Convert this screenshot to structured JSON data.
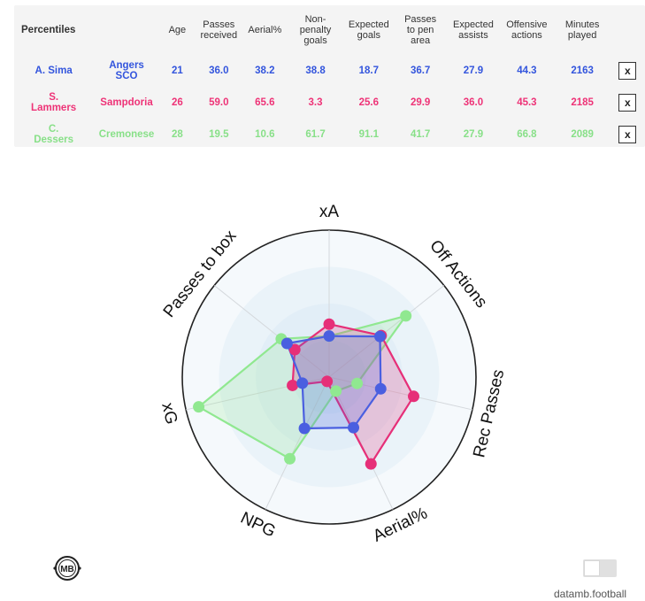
{
  "table": {
    "headers": [
      "Percentiles",
      "",
      "Age",
      "Passes received",
      "Aerial%",
      "Non-penalty goals",
      "Expected goals",
      "Passes to pen area",
      "Expected assists",
      "Offensive actions",
      "Minutes played"
    ],
    "header_lines": [
      [
        "Percentiles"
      ],
      [
        ""
      ],
      [
        "Age"
      ],
      [
        "Passes",
        "received"
      ],
      [
        "Aerial%"
      ],
      [
        "Non-",
        "penalty",
        "goals"
      ],
      [
        "Expected",
        "goals"
      ],
      [
        "Passes",
        "to pen",
        "area"
      ],
      [
        "Expected",
        "assists"
      ],
      [
        "Offensive",
        "actions"
      ],
      [
        "Minutes",
        "played"
      ]
    ],
    "remove_label": "x",
    "rows": [
      {
        "player": "A. Sima",
        "player_lines": [
          "A. Sima"
        ],
        "team": "Angers SCO",
        "team_lines": [
          "Angers",
          "SCO"
        ],
        "values": [
          "21",
          "36.0",
          "38.2",
          "38.8",
          "18.7",
          "36.7",
          "27.9",
          "44.3",
          "2163"
        ],
        "color": "#3355dd"
      },
      {
        "player": "S. Lammers",
        "player_lines": [
          "S.",
          "Lammers"
        ],
        "team": "Sampdoria",
        "team_lines": [
          "Sampdoria"
        ],
        "values": [
          "26",
          "59.0",
          "65.6",
          "3.3",
          "25.6",
          "29.9",
          "36.0",
          "45.3",
          "2185"
        ],
        "color": "#ee3377"
      },
      {
        "player": "C. Dessers",
        "player_lines": [
          "C.",
          "Dessers"
        ],
        "team": "Cremonese",
        "team_lines": [
          "Cremonese"
        ],
        "values": [
          "28",
          "19.5",
          "10.6",
          "61.7",
          "91.1",
          "41.7",
          "27.9",
          "66.8",
          "2089"
        ],
        "color": "#88e088"
      }
    ]
  },
  "chart_data": {
    "type": "radar",
    "axes": [
      "xA",
      "Off Actions",
      "Rec Passes",
      "Aerial%",
      "NPG",
      "xG",
      "Passes to box"
    ],
    "range": [
      0,
      100
    ],
    "rings": 4,
    "series": [
      {
        "name": "A. Sima",
        "values": [
          27.9,
          44.3,
          36.0,
          38.2,
          38.8,
          18.7,
          36.7
        ],
        "color": "#4a5fe0"
      },
      {
        "name": "S. Lammers",
        "values": [
          36.0,
          45.3,
          59.0,
          65.6,
          3.3,
          25.6,
          29.9
        ],
        "color": "#e62f78"
      },
      {
        "name": "C. Dessers",
        "values": [
          27.9,
          66.8,
          19.5,
          10.6,
          61.7,
          91.1,
          41.7
        ],
        "color": "#90e890"
      }
    ]
  },
  "footer": {
    "logo_text": "MB",
    "brand": "datamb.football"
  }
}
